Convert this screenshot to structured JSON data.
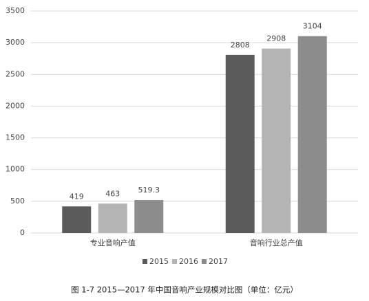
{
  "chart_data": {
    "type": "bar",
    "title": "图 1-7 2015—2017 年中国音响产业规模对比图（单位：亿元）",
    "categories": [
      "专业音响产值",
      "音响行业总产值"
    ],
    "series": [
      {
        "name": "2015",
        "color": "#5b5b5b",
        "values": [
          419,
          2808
        ]
      },
      {
        "name": "2016",
        "color": "#b4b4b4",
        "values": [
          463,
          2908
        ]
      },
      {
        "name": "2017",
        "color": "#8c8c8c",
        "values": [
          519.3,
          3104
        ]
      }
    ],
    "ylim": [
      0,
      3500
    ],
    "yticks": [
      0,
      500,
      1000,
      1500,
      2000,
      2500,
      3000,
      3500
    ],
    "grid": true,
    "legend": "bottom"
  }
}
